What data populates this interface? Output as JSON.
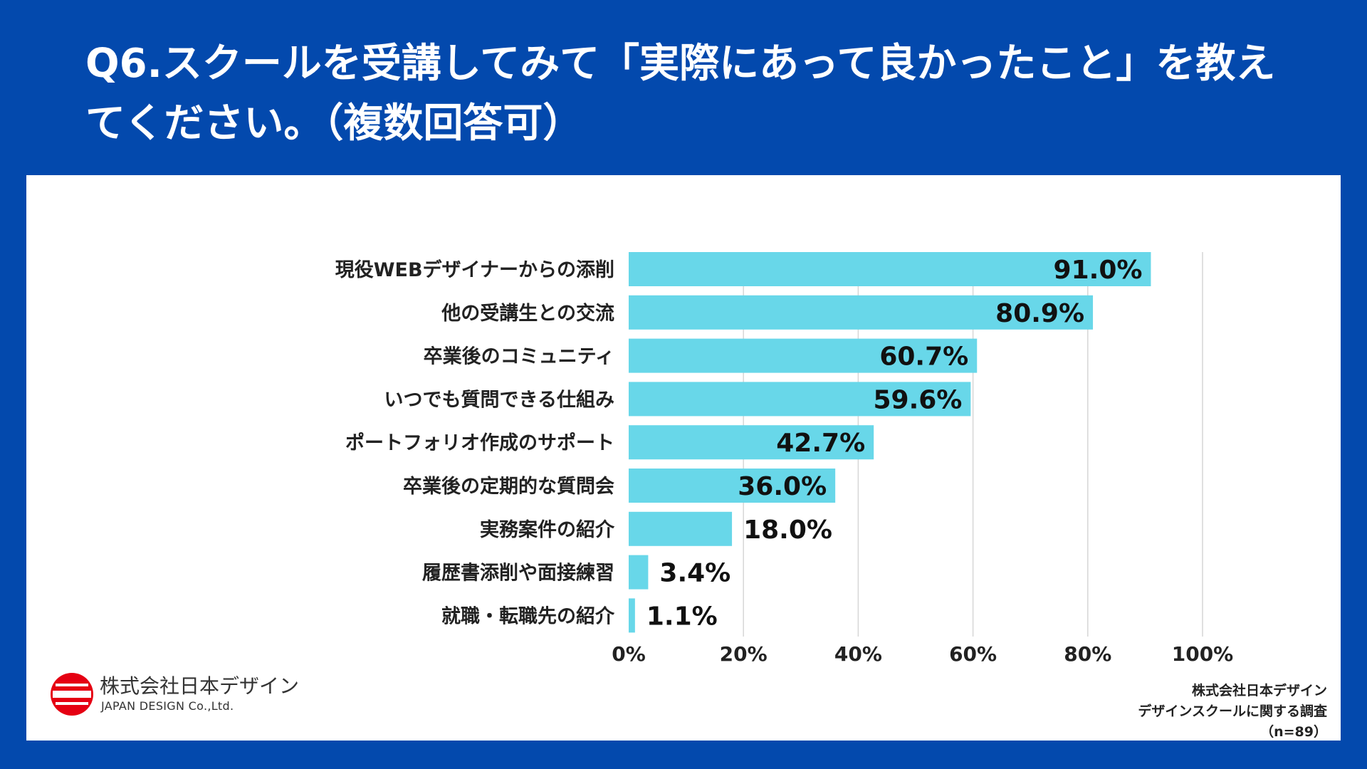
{
  "title": "Q6.スクールを受講してみて「実際にあって良かったこと」を教えてください。（複数回答可）",
  "colors": {
    "background": "#0349ad",
    "bar": "#68d7e9",
    "grid": "#d6d6d6",
    "text": "#222222"
  },
  "chart_data": {
    "type": "bar",
    "orientation": "horizontal",
    "categories": [
      "現役WEBデザイナーからの添削",
      "他の受講生との交流",
      "卒業後のコミュニティ",
      "いつでも質問できる仕組み",
      "ポートフォリオ作成のサポート",
      "卒業後の定期的な質問会",
      "実務案件の紹介",
      "履歴書添削や面接練習",
      "就職・転職先の紹介"
    ],
    "values": [
      91.0,
      80.9,
      60.7,
      59.6,
      42.7,
      36.0,
      18.0,
      3.4,
      1.1
    ],
    "data_labels": [
      "91.0%",
      "80.9%",
      "60.7%",
      "59.6%",
      "42.7%",
      "36.0%",
      "18.0%",
      "3.4%",
      "1.1%"
    ],
    "xlim": [
      0,
      100
    ],
    "xticks": [
      0,
      20,
      40,
      60,
      80,
      100
    ],
    "xtick_labels": [
      "0%",
      "20%",
      "40%",
      "60%",
      "80%",
      "100%"
    ],
    "grid": true,
    "legend": "none"
  },
  "logo": {
    "name": "株式会社日本デザイン",
    "name_sub": "JAPAN DESIGN Co.,Ltd."
  },
  "source": {
    "line1": "株式会社日本デザイン",
    "line2": "デザインスクールに関する調査",
    "line3": "（n=89）"
  }
}
